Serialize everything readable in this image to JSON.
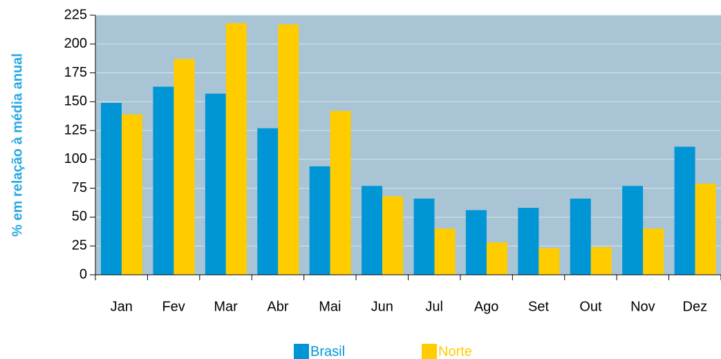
{
  "chart_data": {
    "type": "bar",
    "y_label": "% em relação à média anual",
    "categories": [
      "Jan",
      "Fev",
      "Mar",
      "Abr",
      "Mai",
      "Jun",
      "Jul",
      "Ago",
      "Set",
      "Out",
      "Nov",
      "Dez"
    ],
    "series": [
      {
        "name": "Brasil",
        "color": "#0096d6",
        "values": [
          149,
          163,
          157,
          127,
          94,
          77,
          66,
          56,
          58,
          66,
          77,
          111
        ]
      },
      {
        "name": "Norte",
        "color": "#ffcc00",
        "values": [
          139,
          187,
          218,
          217,
          142,
          68,
          40,
          28,
          23,
          24,
          40,
          79
        ]
      }
    ],
    "ylim": [
      0,
      225
    ],
    "yticks": [
      0,
      25,
      50,
      75,
      100,
      125,
      150,
      175,
      200,
      225
    ],
    "grid": true,
    "legend": "bottom"
  }
}
